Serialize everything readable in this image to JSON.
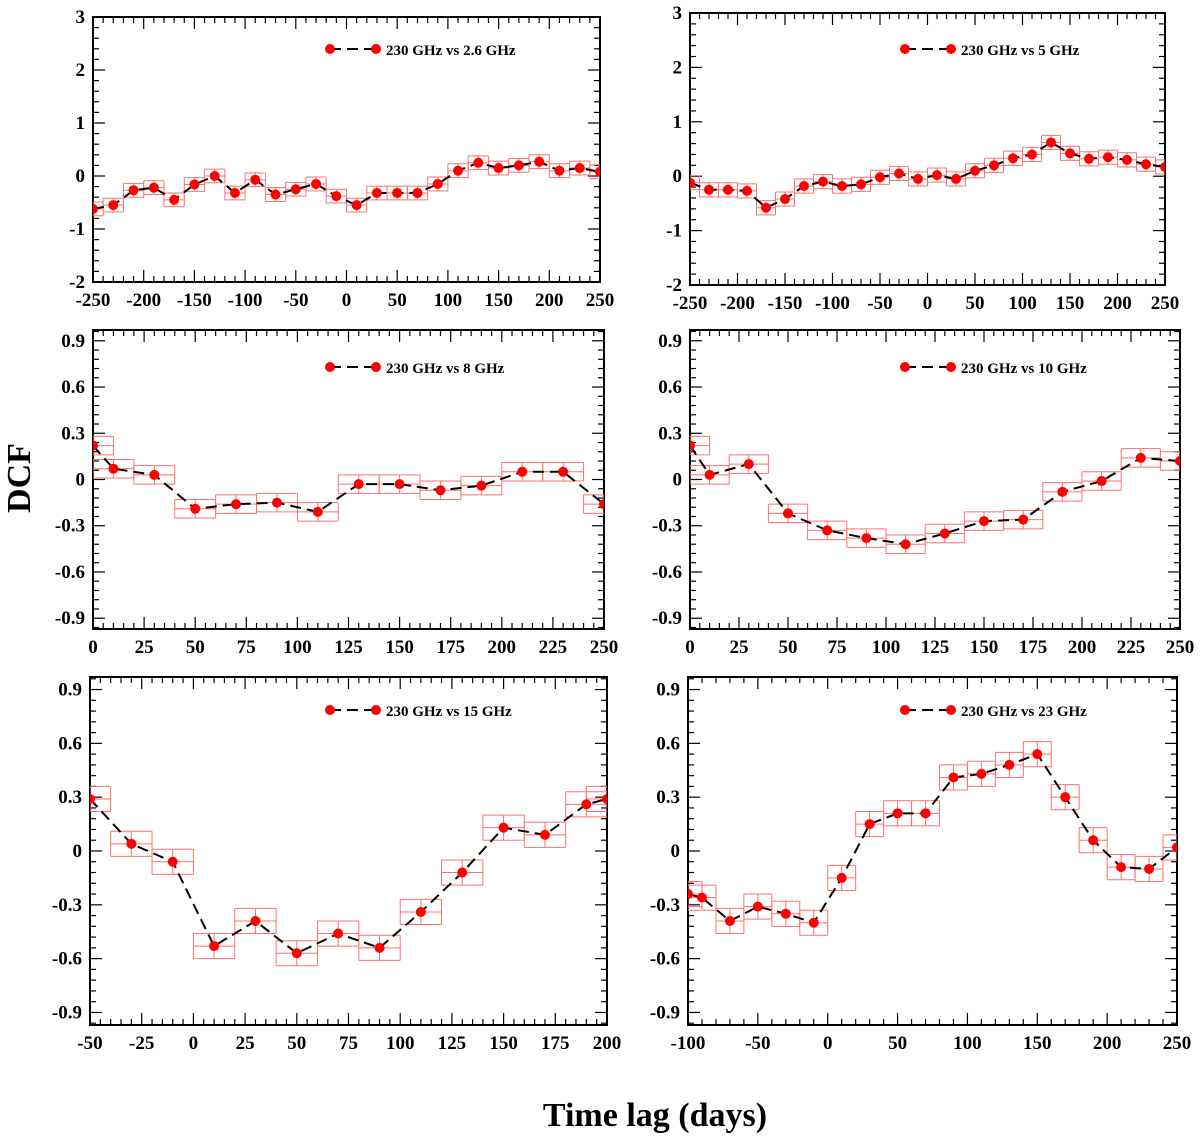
{
  "figure": {
    "ylabel": "DCF",
    "xlabel": "Time lag (days)"
  },
  "colors": {
    "marker": "#ff0000",
    "errorbar": "#ff7070",
    "line": "#000000",
    "axis": "#000000"
  },
  "chart_data": [
    {
      "type": "scatter",
      "legend": "230 GHz vs 2.6 GHz",
      "xlim": [
        -250,
        250
      ],
      "ylim": [
        -2,
        3
      ],
      "xticks": [
        -250,
        -200,
        -150,
        -100,
        -50,
        0,
        50,
        100,
        150,
        200,
        250
      ],
      "yticks": [
        -2,
        -1,
        0,
        1,
        2,
        3
      ],
      "xerr": 10,
      "yerr": 0.13,
      "series": [
        {
          "name": "230 GHz vs 2.6 GHz",
          "x": [
            -250,
            -230,
            -210,
            -190,
            -170,
            -150,
            -130,
            -110,
            -90,
            -70,
            -50,
            -30,
            -10,
            10,
            30,
            50,
            70,
            90,
            110,
            130,
            150,
            170,
            190,
            210,
            230,
            250
          ],
          "y": [
            -0.62,
            -0.55,
            -0.27,
            -0.22,
            -0.45,
            -0.16,
            0.0,
            -0.32,
            -0.07,
            -0.35,
            -0.25,
            -0.15,
            -0.38,
            -0.55,
            -0.32,
            -0.32,
            -0.32,
            -0.15,
            0.1,
            0.25,
            0.15,
            0.2,
            0.27,
            0.1,
            0.15,
            0.08
          ]
        }
      ]
    },
    {
      "type": "scatter",
      "legend": "230 GHz vs 5 GHz",
      "xlim": [
        -250,
        250
      ],
      "ylim": [
        -2,
        3
      ],
      "xticks": [
        -250,
        -200,
        -150,
        -100,
        -50,
        0,
        50,
        100,
        150,
        200,
        250
      ],
      "yticks": [
        -2,
        -1,
        0,
        1,
        2,
        3
      ],
      "xerr": 10,
      "yerr": 0.13,
      "series": [
        {
          "name": "230 GHz vs 5 GHz",
          "x": [
            -250,
            -230,
            -210,
            -190,
            -170,
            -150,
            -130,
            -110,
            -90,
            -70,
            -50,
            -30,
            -10,
            10,
            30,
            50,
            70,
            90,
            110,
            130,
            150,
            170,
            190,
            210,
            230,
            250
          ],
          "y": [
            -0.12,
            -0.25,
            -0.25,
            -0.27,
            -0.58,
            -0.42,
            -0.18,
            -0.1,
            -0.18,
            -0.15,
            -0.02,
            0.05,
            -0.05,
            0.02,
            -0.05,
            0.1,
            0.2,
            0.33,
            0.4,
            0.62,
            0.42,
            0.32,
            0.35,
            0.3,
            0.22,
            0.17
          ]
        }
      ]
    },
    {
      "type": "scatter",
      "legend": "230 GHz vs 8 GHz",
      "xlim": [
        0,
        250
      ],
      "ylim": [
        -0.97,
        0.97
      ],
      "xticks": [
        0,
        25,
        50,
        75,
        100,
        125,
        150,
        175,
        200,
        225,
        250
      ],
      "yticks": [
        -0.9,
        -0.6,
        -0.3,
        0,
        0.3,
        0.6,
        0.9
      ],
      "xerr": 10,
      "yerr": 0.06,
      "series": [
        {
          "name": "230 GHz vs 8 GHz",
          "x": [
            0,
            10,
            30,
            50,
            70,
            90,
            110,
            130,
            150,
            170,
            190,
            210,
            230,
            250
          ],
          "y": [
            0.22,
            0.07,
            0.03,
            -0.19,
            -0.16,
            -0.15,
            -0.21,
            -0.03,
            -0.03,
            -0.07,
            -0.04,
            0.05,
            0.05,
            -0.16
          ]
        }
      ]
    },
    {
      "type": "scatter",
      "legend": "230 GHz vs 10 GHz",
      "xlim": [
        0,
        250
      ],
      "ylim": [
        -0.97,
        0.97
      ],
      "xticks": [
        0,
        25,
        50,
        75,
        100,
        125,
        150,
        175,
        200,
        225,
        250
      ],
      "yticks": [
        -0.9,
        -0.6,
        -0.3,
        0,
        0.3,
        0.6,
        0.9
      ],
      "xerr": 10,
      "yerr": 0.06,
      "series": [
        {
          "name": "230 GHz vs 10 GHz",
          "x": [
            0,
            10,
            30,
            50,
            70,
            90,
            110,
            130,
            150,
            170,
            190,
            210,
            230,
            250
          ],
          "y": [
            0.22,
            0.03,
            0.1,
            -0.22,
            -0.33,
            -0.38,
            -0.42,
            -0.35,
            -0.27,
            -0.26,
            -0.08,
            -0.01,
            0.14,
            0.12
          ]
        }
      ]
    },
    {
      "type": "scatter",
      "legend": "230 GHz vs 15 GHz",
      "xlim": [
        -50,
        200
      ],
      "ylim": [
        -0.97,
        0.97
      ],
      "xticks": [
        -50,
        -25,
        0,
        25,
        50,
        75,
        100,
        125,
        150,
        175,
        200
      ],
      "yticks": [
        -0.9,
        -0.6,
        -0.3,
        0,
        0.3,
        0.6,
        0.9
      ],
      "xerr": 10,
      "yerr": 0.07,
      "series": [
        {
          "name": "230 GHz vs 15 GHz",
          "x": [
            -50,
            -30,
            -10,
            10,
            30,
            50,
            70,
            90,
            110,
            130,
            150,
            170,
            190,
            200
          ],
          "y": [
            0.29,
            0.04,
            -0.06,
            -0.53,
            -0.39,
            -0.57,
            -0.46,
            -0.54,
            -0.34,
            -0.12,
            0.13,
            0.09,
            0.26,
            0.29
          ]
        }
      ]
    },
    {
      "type": "scatter",
      "legend": "230 GHz vs 23 GHz",
      "xlim": [
        -100,
        250
      ],
      "ylim": [
        -0.97,
        0.97
      ],
      "xticks": [
        -100,
        -50,
        0,
        50,
        100,
        150,
        200,
        250
      ],
      "yticks": [
        -0.9,
        -0.6,
        -0.3,
        0,
        0.3,
        0.6,
        0.9
      ],
      "xerr": 10,
      "yerr": 0.07,
      "series": [
        {
          "name": "230 GHz vs 23 GHz",
          "x": [
            -100,
            -90,
            -70,
            -50,
            -30,
            -10,
            10,
            30,
            50,
            70,
            90,
            110,
            130,
            150,
            170,
            190,
            210,
            230,
            250
          ],
          "y": [
            -0.24,
            -0.26,
            -0.39,
            -0.31,
            -0.35,
            -0.4,
            -0.15,
            0.15,
            0.21,
            0.21,
            0.41,
            0.43,
            0.48,
            0.54,
            0.3,
            0.06,
            -0.09,
            -0.1,
            0.02
          ]
        }
      ]
    }
  ]
}
